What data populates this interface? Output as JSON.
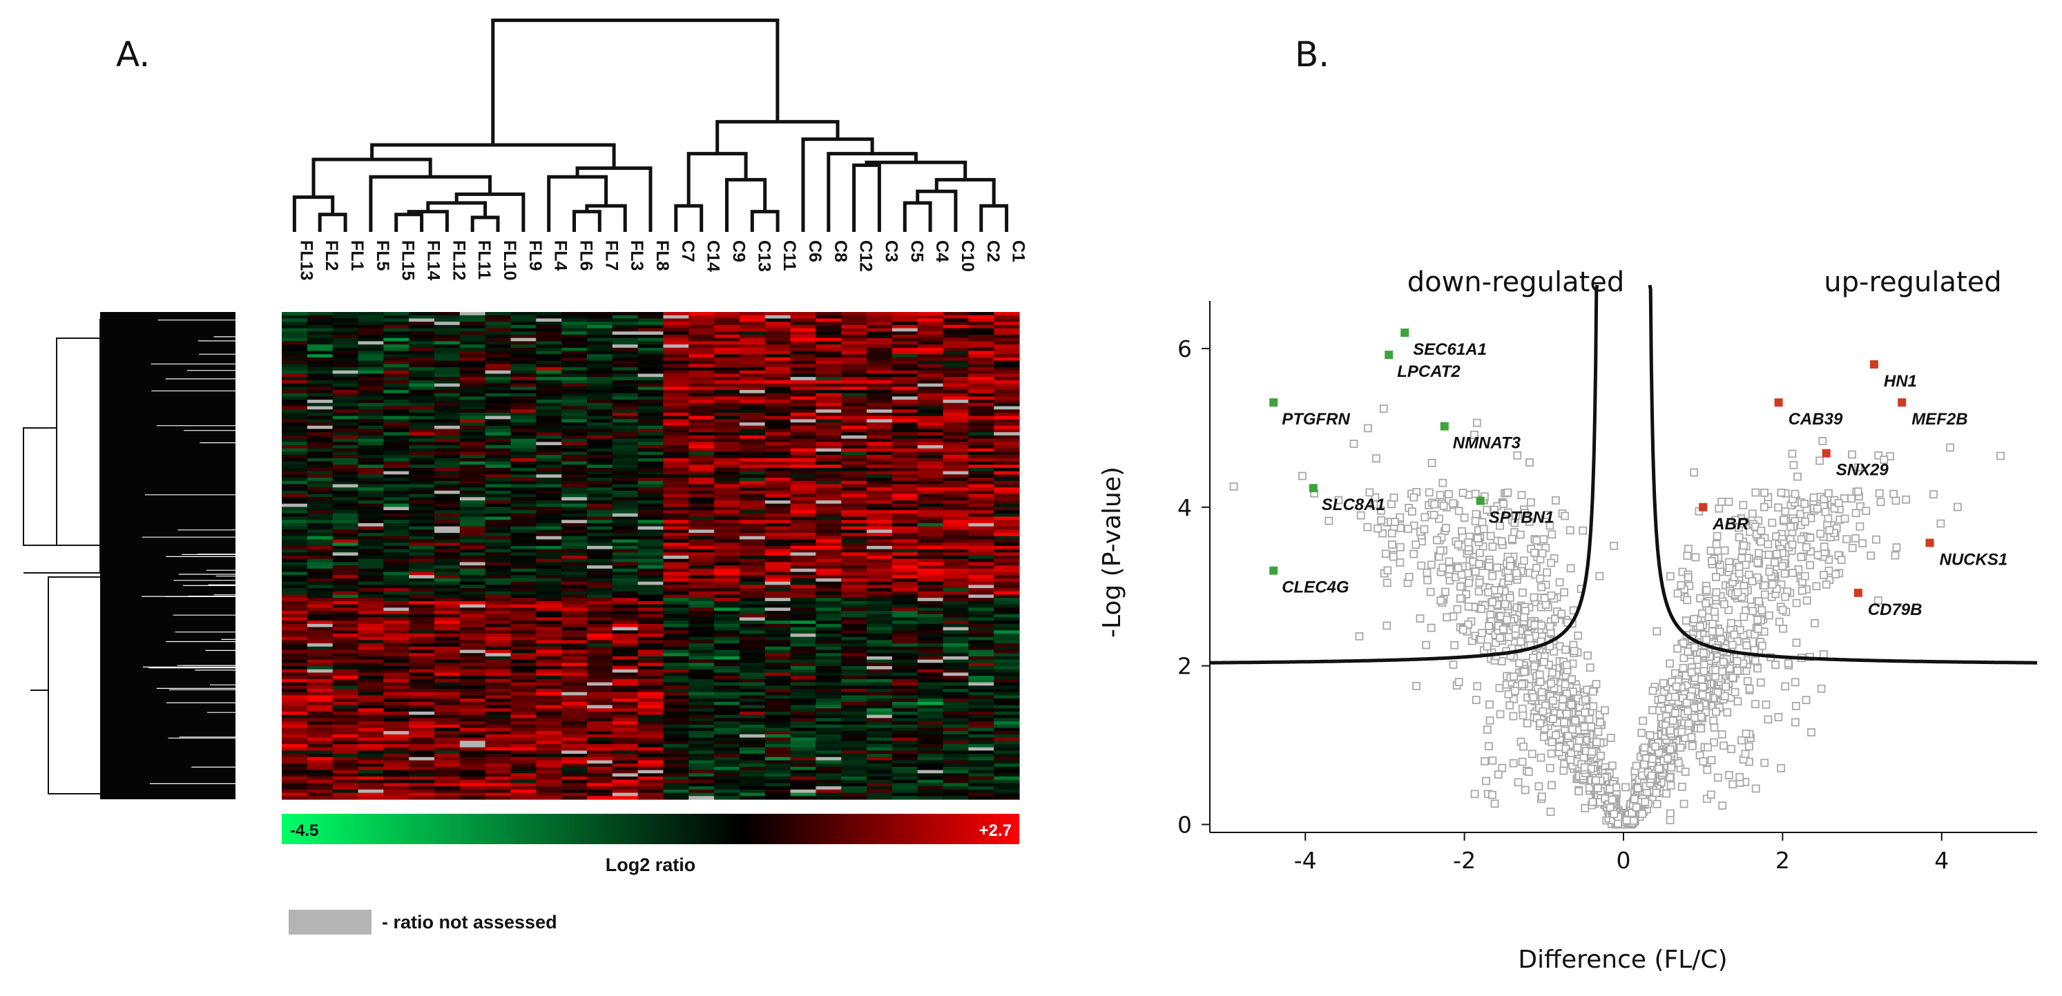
{
  "panel_a": {
    "label": "A.",
    "columns": [
      "FL13",
      "FL2",
      "FL1",
      "FL5",
      "FL15",
      "FL14",
      "FL12",
      "FL11",
      "FL10",
      "FL9",
      "FL4",
      "FL6",
      "FL7",
      "FL3",
      "FL8",
      "C7",
      "C14",
      "C9",
      "C13",
      "C11",
      "C6",
      "C8",
      "C12",
      "C3",
      "C5",
      "C4",
      "C10",
      "C2",
      "C1"
    ],
    "colorbar": {
      "min_label": "-4.5",
      "max_label": "+2.7",
      "min": -4.5,
      "max": 2.7,
      "title": "Log2 ratio",
      "colors": [
        "#00ff66",
        "#000000",
        "#ff0000"
      ]
    },
    "na_legend": {
      "label": "- ratio not assessed",
      "color": "#b4b4b4"
    }
  },
  "panel_b": {
    "label": "B.",
    "region_left": "down-regulated",
    "region_right": "up-regulated",
    "xlabel": "Difference (FL/C)",
    "ylabel": "-Log (P-value)",
    "xticks": [
      "-4",
      "-2",
      "0",
      "2",
      "4"
    ],
    "yticks": [
      "0",
      "2",
      "4",
      "6"
    ]
  },
  "chart_data": [
    {
      "type": "heatmap",
      "title": "",
      "columns": [
        "FL13",
        "FL2",
        "FL1",
        "FL5",
        "FL15",
        "FL14",
        "FL12",
        "FL11",
        "FL10",
        "FL9",
        "FL4",
        "FL6",
        "FL7",
        "FL3",
        "FL8",
        "C7",
        "C14",
        "C9",
        "C13",
        "C11",
        "C6",
        "C8",
        "C12",
        "C3",
        "C5",
        "C4",
        "C10",
        "C2",
        "C1"
      ],
      "color_range": [
        -4.5,
        2.7
      ],
      "colorbar_label": "Log2 ratio",
      "missing_value_legend": "- ratio not assessed"
    },
    {
      "type": "scatter",
      "title": "",
      "xlabel": "Difference (FL/C)",
      "ylabel": "-Log (P-value)",
      "xlim": [
        -5.2,
        5.2
      ],
      "ylim": [
        -0.1,
        6.6
      ],
      "labeled_down": [
        {
          "gene": "SEC61A1",
          "x": -2.75,
          "y": 6.2
        },
        {
          "gene": "LPCAT2",
          "x": -2.95,
          "y": 5.92
        },
        {
          "gene": "PTGFRN",
          "x": -4.4,
          "y": 5.32
        },
        {
          "gene": "NMNAT3",
          "x": -2.25,
          "y": 5.02
        },
        {
          "gene": "SLC8A1",
          "x": -3.9,
          "y": 4.24
        },
        {
          "gene": "SPTBN1",
          "x": -1.8,
          "y": 4.08
        },
        {
          "gene": "CLEC4G",
          "x": -4.4,
          "y": 3.2
        }
      ],
      "labeled_up": [
        {
          "gene": "HN1",
          "x": 3.15,
          "y": 5.8
        },
        {
          "gene": "CAB39",
          "x": 1.95,
          "y": 5.32
        },
        {
          "gene": "MEF2B",
          "x": 3.5,
          "y": 5.32
        },
        {
          "gene": "SNX29",
          "x": 2.55,
          "y": 4.68
        },
        {
          "gene": "ABR",
          "x": 1.0,
          "y": 4.0
        },
        {
          "gene": "NUCKS1",
          "x": 3.85,
          "y": 3.55
        },
        {
          "gene": "CD79B",
          "x": 2.95,
          "y": 2.92
        }
      ],
      "threshold_curve": "symmetric significance boundary approaching -Log(P) = 2 at |x| = 5.2 and rising vertically near |x| = 0.3",
      "colors": {
        "points": "#a8a8a8",
        "down": "#3fa33c",
        "up": "#d13b22",
        "curve": "#000000"
      }
    }
  ]
}
